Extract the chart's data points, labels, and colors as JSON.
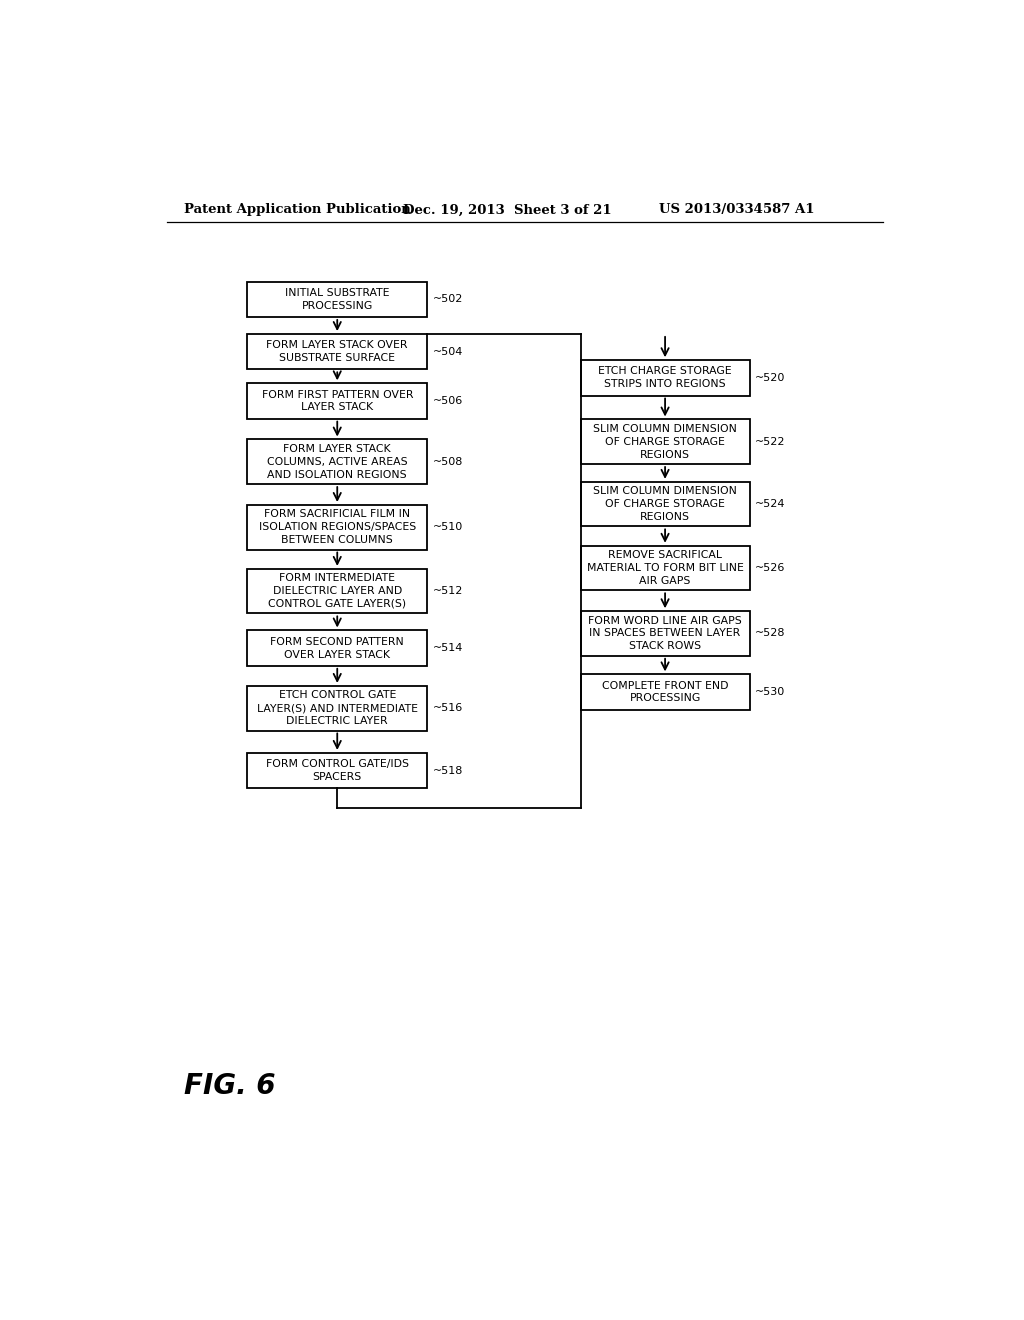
{
  "header_left": "Patent Application Publication",
  "header_mid": "Dec. 19, 2013  Sheet 3 of 21",
  "header_right": "US 2013/0334587 A1",
  "figure_label": "FIG. 6",
  "bg": "#ffffff",
  "left_boxes": [
    {
      "label": "INITIAL SUBSTRATE\nPROCESSING",
      "tag": "~502"
    },
    {
      "label": "FORM LAYER STACK OVER\nSUBSTRATE SURFACE",
      "tag": "~504"
    },
    {
      "label": "FORM FIRST PATTERN OVER\nLAYER STACK",
      "tag": "~506"
    },
    {
      "label": "FORM LAYER STACK\nCOLUMNS, ACTIVE AREAS\nAND ISOLATION REGIONS",
      "tag": "~508"
    },
    {
      "label": "FORM SACRIFICIAL FILM IN\nISOLATION REGIONS/SPACES\nBETWEEN COLUMNS",
      "tag": "~510"
    },
    {
      "label": "FORM INTERMEDIATE\nDIELECTRIC LAYER AND\nCONTROL GATE LAYER(S)",
      "tag": "~512"
    },
    {
      "label": "FORM SECOND PATTERN\nOVER LAYER STACK",
      "tag": "~514"
    },
    {
      "label": "ETCH CONTROL GATE\nLAYER(S) AND INTERMEDIATE\nDIELECTRIC LAYER",
      "tag": "~516"
    },
    {
      "label": "FORM CONTROL GATE/IDS\nSPACERS",
      "tag": "~518"
    }
  ],
  "right_boxes": [
    {
      "label": "ETCH CHARGE STORAGE\nSTRIPS INTO REGIONS",
      "tag": "~520"
    },
    {
      "label": "SLIM COLUMN DIMENSION\nOF CHARGE STORAGE\nREGIONS",
      "tag": "~522"
    },
    {
      "label": "SLIM COLUMN DIMENSION\nOF CHARGE STORAGE\nREGIONS",
      "tag": "~524"
    },
    {
      "label": "REMOVE SACRIFICAL\nMATERIAL TO FORM BIT LINE\nAIR GAPS",
      "tag": "~526"
    },
    {
      "label": "FORM WORD LINE AIR GAPS\nIN SPACES BETWEEN LAYER\nSTACK ROWS",
      "tag": "~528"
    },
    {
      "label": "COMPLETE FRONT END\nPROCESSING",
      "tag": "~530"
    }
  ],
  "lcx": 270,
  "lbw": 232,
  "rcx": 693,
  "rbw": 218,
  "lys": [
    183,
    251,
    315,
    394,
    479,
    562,
    636,
    714,
    795
  ],
  "lhs": [
    46,
    46,
    46,
    58,
    58,
    58,
    46,
    58,
    46
  ],
  "rys": [
    285,
    368,
    449,
    532,
    617,
    693
  ],
  "rhs": [
    46,
    58,
    58,
    58,
    58,
    46
  ]
}
